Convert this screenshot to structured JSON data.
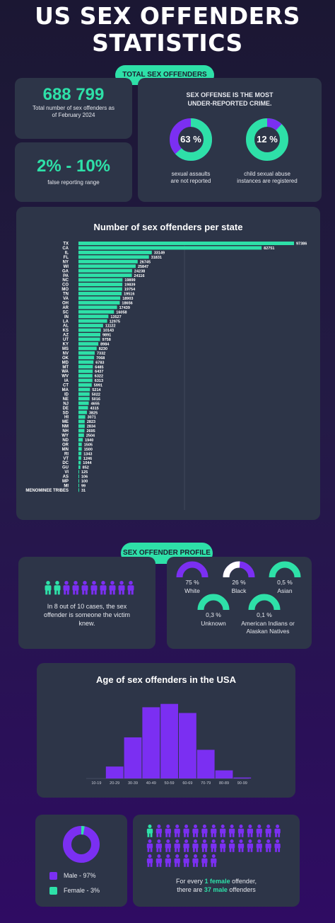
{
  "header": {
    "title_line1": "US SEX OFFENDERS",
    "title_line2": "STATISTICS"
  },
  "section1": {
    "pill": "TOTAL SEX OFFENDERS"
  },
  "total": {
    "value": "688 799",
    "caption": "Total number of sex offenders as of February 2024"
  },
  "false_reports": {
    "value": "2% - 10%",
    "caption": "false reporting range"
  },
  "underreported": {
    "heading": "SEX OFFENSE IS THE MOST UNDER-REPORTED CRIME.",
    "donut1": {
      "label": "63 %",
      "caption_line1": "sexual assaults",
      "caption_line2": "are not reported",
      "value": 63
    },
    "donut2": {
      "label": "12 %",
      "caption_line1": "child sexual abuse",
      "caption_line2": "instances are registered",
      "value": 12
    }
  },
  "colors": {
    "accent": "#2ee0a8",
    "purple": "#7b2ff2",
    "card": "#2d3548"
  },
  "chart_data": [
    {
      "type": "bar",
      "orientation": "horizontal",
      "title": "Number of sex offenders per state",
      "categories": [
        "TX",
        "CA",
        "IL",
        "FL",
        "NY",
        "WI",
        "GA",
        "PA",
        "NC",
        "CO",
        "MO",
        "TN",
        "VA",
        "OH",
        "AR",
        "SC",
        "IN",
        "LA",
        "AL",
        "KS",
        "AZ",
        "UT",
        "KY",
        "MS",
        "NV",
        "OK",
        "MD",
        "MT",
        "WA",
        "WV",
        "IA",
        "CT",
        "MA",
        "ID",
        "NE",
        "NJ",
        "DE",
        "SD",
        "HI",
        "ME",
        "NM",
        "NH",
        "WY",
        "ND",
        "OR",
        "MN",
        "RI",
        "VT",
        "DC",
        "GU",
        "VI",
        "AS",
        "MP",
        "MI",
        "MENOMINEE TRIBES"
      ],
      "values": [
        97386,
        82751,
        33149,
        31831,
        26745,
        25847,
        24238,
        24116,
        19899,
        19839,
        19754,
        19516,
        18903,
        18656,
        17439,
        16058,
        13527,
        12975,
        11122,
        10143,
        9891,
        9758,
        8984,
        8230,
        7332,
        7068,
        6783,
        6485,
        6437,
        6322,
        6313,
        5991,
        5214,
        5022,
        5016,
        4655,
        4315,
        3825,
        3071,
        2823,
        2834,
        2695,
        2504,
        1940,
        1505,
        1500,
        1343,
        1246,
        1044,
        852,
        125,
        106,
        100,
        99,
        31
      ],
      "value_labels": [
        "97386",
        "82751",
        "33149",
        "31831",
        "26745",
        "25847",
        "24238",
        "24116",
        "19899",
        "19839",
        "19754",
        "19516",
        "18903",
        "18656",
        "17439",
        "16058",
        "13527",
        "12975",
        "11122",
        "10143",
        "9891",
        "9758",
        "8984",
        "8230",
        "7332",
        "7068",
        "6783",
        "6485",
        "6437",
        "6322",
        "6313",
        "5991",
        "5214",
        "5022",
        "5016",
        "4655",
        "4315",
        "3825",
        "3071",
        "2823",
        "2834",
        "2695",
        "2504",
        "1940",
        "1505",
        "1500",
        "1343",
        "1246",
        "1044",
        "852",
        "125",
        "106",
        "100",
        "99",
        "31"
      ],
      "xlim": [
        0,
        97386
      ],
      "color": "#2ee0a8"
    },
    {
      "type": "bar",
      "title": "Age of sex offenders in the USA",
      "categories": [
        "10-19",
        "20-29",
        "30-39",
        "40-49",
        "50-59",
        "60-69",
        "70-79",
        "80-89",
        "90-99"
      ],
      "values": [
        0,
        2.5,
        8.6,
        14.9,
        15.6,
        13.7,
        6.0,
        1.7,
        0.2
      ],
      "color": "#7b2ff2"
    },
    {
      "type": "pie",
      "style": "donut",
      "labels": [
        "Male - 97%",
        "Female - 3%"
      ],
      "values": [
        97,
        3
      ],
      "colors": [
        "#7b2ff2",
        "#2ee0a8"
      ]
    }
  ],
  "section2": {
    "pill": "SEX OFFENDER PROFILE"
  },
  "acquaintance": {
    "text_line1": "In 8 out of 10 cases, the sex",
    "text_line2": "offender is someone the victim",
    "text_line3": "knew.",
    "known": 8,
    "total": 10
  },
  "ethnicity": [
    {
      "pct": "75 %",
      "name": "White",
      "value": 75,
      "color": "#7b2ff2"
    },
    {
      "pct": "26 %",
      "name": "Black",
      "value": 26,
      "color": "#7b2ff2"
    },
    {
      "pct": "0,5 %",
      "name": "Asian",
      "value": 0.5,
      "color": "#2ee0a8"
    },
    {
      "pct": "0,3 %",
      "name": "Unknown",
      "value": 0.3,
      "color": "#2ee0a8"
    },
    {
      "pct": "0,1 %",
      "name_line1": "American Indians or",
      "name_line2": "Alaskan Natives",
      "value": 0.1,
      "color": "#2ee0a8"
    }
  ],
  "ratio": {
    "text_pre": "For every ",
    "text_female": "1 female",
    "text_mid": " offender,",
    "text_line2_pre": "there are ",
    "text_male": "37 male",
    "text_line2_post": " offenders",
    "female_count": 1,
    "male_count": 37
  }
}
